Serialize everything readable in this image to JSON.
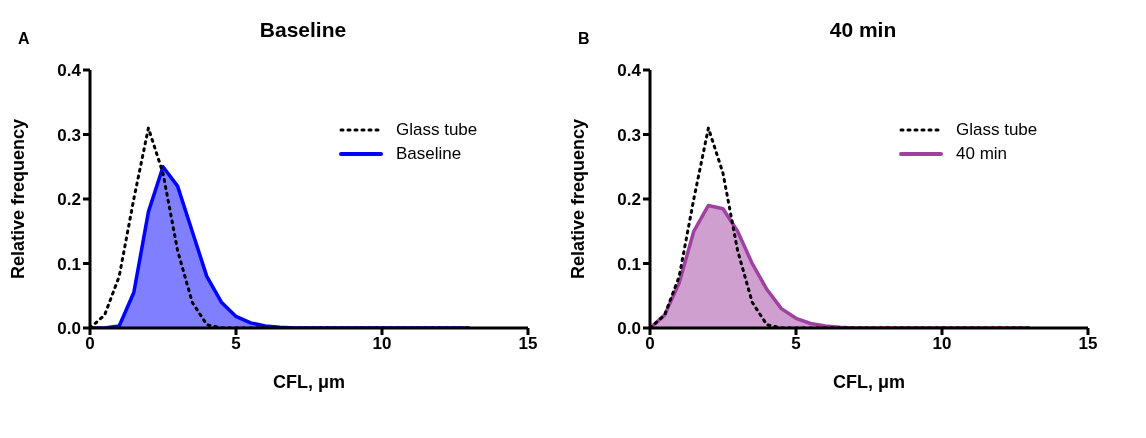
{
  "chart_data": [
    {
      "type": "area",
      "title": "Baseline",
      "xlabel": "CFL, μm",
      "ylabel": "Relative frequency",
      "annotations": [
        "A"
      ],
      "x": [
        0,
        0.5,
        1,
        1.5,
        2,
        2.5,
        3,
        3.5,
        4,
        4.5,
        5,
        5.5,
        6,
        6.5,
        7,
        7.5,
        8,
        8.5,
        9,
        9.5,
        10,
        10.5,
        11,
        11.5,
        12,
        12.5,
        13
      ],
      "series": [
        {
          "name": "Glass tube",
          "type": "line",
          "line_style": "dotted",
          "color": "#000000",
          "values": [
            0,
            0.02,
            0.08,
            0.2,
            0.31,
            0.24,
            0.12,
            0.04,
            0.005,
            0,
            0,
            0,
            0,
            0,
            0,
            0,
            0,
            0,
            0,
            0,
            0,
            0,
            0,
            0,
            0,
            0,
            0
          ]
        },
        {
          "name": "Baseline",
          "color": "#0000ff",
          "values": [
            0,
            0,
            0.003,
            0.055,
            0.18,
            0.25,
            0.22,
            0.15,
            0.08,
            0.04,
            0.018,
            0.008,
            0.003,
            0.001,
            0,
            0,
            0,
            0,
            0,
            0,
            0,
            0,
            0,
            0,
            0,
            0,
            0
          ]
        }
      ],
      "xlim": [
        0,
        15
      ],
      "xticks": [
        0,
        5,
        10,
        15
      ],
      "ylim": [
        0,
        0.4
      ],
      "yticks": [
        {
          "value": 0,
          "label": "0.0"
        },
        0.1,
        0.2,
        0.3,
        0.4
      ],
      "legend": "top right",
      "grid": false
    },
    {
      "type": "area",
      "title": "40 min",
      "xlabel": "CFL, μm",
      "ylabel": "Relative frequency",
      "annotations": [
        "B"
      ],
      "x": [
        0,
        0.5,
        1,
        1.5,
        2,
        2.5,
        3,
        3.5,
        4,
        4.5,
        5,
        5.5,
        6,
        6.5,
        7,
        7.5,
        8,
        8.5,
        9,
        9.5,
        10,
        10.5,
        11,
        11.5,
        12,
        12.5,
        13
      ],
      "series": [
        {
          "name": "Glass tube",
          "type": "line",
          "line_style": "dotted",
          "color": "#000000",
          "values": [
            0,
            0.02,
            0.08,
            0.2,
            0.31,
            0.24,
            0.12,
            0.04,
            0.005,
            0,
            0,
            0,
            0,
            0,
            0,
            0,
            0,
            0,
            0,
            0,
            0,
            0,
            0,
            0,
            0,
            0,
            0
          ]
        },
        {
          "name": "40 min",
          "color": "#a040a0",
          "values": [
            0,
            0.02,
            0.07,
            0.15,
            0.19,
            0.185,
            0.15,
            0.1,
            0.06,
            0.03,
            0.015,
            0.007,
            0.003,
            0.001,
            0,
            0,
            0,
            0,
            0,
            0,
            0,
            0,
            0,
            0,
            0,
            0,
            0
          ]
        }
      ],
      "xlim": [
        0,
        15
      ],
      "xticks": [
        0,
        5,
        10,
        15
      ],
      "ylim": [
        0,
        0.4
      ],
      "yticks": [
        {
          "value": 0,
          "label": "0.0"
        },
        0.1,
        0.2,
        0.3,
        0.4
      ],
      "legend": "top right",
      "grid": false
    }
  ]
}
